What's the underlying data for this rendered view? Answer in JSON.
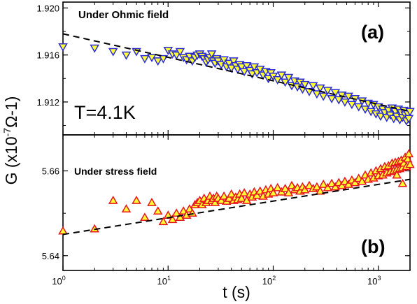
{
  "chart_data": {
    "type": "scatter",
    "x_scale": "log",
    "xlim": [
      1,
      2000
    ],
    "xlabel": "t (s)",
    "ylabel": "G (x10-7Ω-1)",
    "x_ticks": [
      {
        "value": 1,
        "base": "10",
        "exp": "0"
      },
      {
        "value": 10,
        "base": "10",
        "exp": "1"
      },
      {
        "value": 100,
        "base": "10",
        "exp": "2"
      },
      {
        "value": 1000,
        "base": "10",
        "exp": "3"
      }
    ],
    "shared_annotation": "T=4.1K",
    "panels": [
      {
        "label": "(a)",
        "title": "Under Ohmic field",
        "ylim": [
          1.9092,
          1.9205
        ],
        "y_ticks": [
          "1.920",
          "1.916",
          "1.912"
        ],
        "y_tick_values": [
          1.92,
          1.916,
          1.912
        ],
        "marker": "triangle-down",
        "marker_fill": "#ffff33",
        "marker_stroke": "#2b2bd6",
        "fit_line": [
          [
            1,
            1.9178
          ],
          [
            2000,
            1.9112
          ]
        ],
        "points": [
          [
            1,
            1.9167
          ],
          [
            2,
            1.9166
          ],
          [
            3,
            1.9163
          ],
          [
            4,
            1.916
          ],
          [
            5,
            1.9163
          ],
          [
            6,
            1.9157
          ],
          [
            7,
            1.9158
          ],
          [
            8,
            1.9155
          ],
          [
            9,
            1.9157
          ],
          [
            10,
            1.9164
          ],
          [
            11,
            1.9161
          ],
          [
            12,
            1.916
          ],
          [
            13,
            1.9163
          ],
          [
            14,
            1.9158
          ],
          [
            15,
            1.9156
          ],
          [
            16,
            1.9159
          ],
          [
            17,
            1.9155
          ],
          [
            18,
            1.9158
          ],
          [
            19,
            1.916
          ],
          [
            20,
            1.9161
          ],
          [
            21,
            1.9159
          ],
          [
            22,
            1.9157
          ],
          [
            23,
            1.9154
          ],
          [
            24,
            1.9156
          ],
          [
            25,
            1.9158
          ],
          [
            26,
            1.9161
          ],
          [
            27,
            1.9155
          ],
          [
            28,
            1.9153
          ],
          [
            29,
            1.9157
          ],
          [
            30,
            1.9155
          ],
          [
            32,
            1.9152
          ],
          [
            34,
            1.9156
          ],
          [
            36,
            1.915
          ],
          [
            38,
            1.9153
          ],
          [
            40,
            1.9149
          ],
          [
            42,
            1.9155
          ],
          [
            44,
            1.9151
          ],
          [
            46,
            1.9148
          ],
          [
            48,
            1.9152
          ],
          [
            50,
            1.915
          ],
          [
            53,
            1.9146
          ],
          [
            56,
            1.9151
          ],
          [
            60,
            1.9147
          ],
          [
            63,
            1.9144
          ],
          [
            66,
            1.915
          ],
          [
            70,
            1.9145
          ],
          [
            75,
            1.9148
          ],
          [
            80,
            1.9143
          ],
          [
            85,
            1.9146
          ],
          [
            90,
            1.914
          ],
          [
            95,
            1.9145
          ],
          [
            100,
            1.9142
          ],
          [
            110,
            1.9139
          ],
          [
            120,
            1.9143
          ],
          [
            130,
            1.9137
          ],
          [
            140,
            1.9141
          ],
          [
            150,
            1.9134
          ],
          [
            160,
            1.9138
          ],
          [
            170,
            1.9133
          ],
          [
            180,
            1.9137
          ],
          [
            190,
            1.9131
          ],
          [
            200,
            1.9135
          ],
          [
            220,
            1.9129
          ],
          [
            240,
            1.9134
          ],
          [
            260,
            1.9127
          ],
          [
            280,
            1.9132
          ],
          [
            300,
            1.9125
          ],
          [
            330,
            1.913
          ],
          [
            360,
            1.9123
          ],
          [
            390,
            1.9128
          ],
          [
            420,
            1.9122
          ],
          [
            450,
            1.9126
          ],
          [
            480,
            1.912
          ],
          [
            520,
            1.9125
          ],
          [
            560,
            1.9118
          ],
          [
            600,
            1.9123
          ],
          [
            650,
            1.9116
          ],
          [
            700,
            1.9121
          ],
          [
            750,
            1.9114
          ],
          [
            800,
            1.9119
          ],
          [
            850,
            1.9112
          ],
          [
            900,
            1.9118
          ],
          [
            950,
            1.911
          ],
          [
            1000,
            1.9116
          ],
          [
            1050,
            1.9108
          ],
          [
            1100,
            1.9114
          ],
          [
            1150,
            1.9111
          ],
          [
            1200,
            1.9107
          ],
          [
            1250,
            1.9113
          ],
          [
            1300,
            1.9109
          ],
          [
            1350,
            1.9115
          ],
          [
            1400,
            1.9106
          ],
          [
            1450,
            1.9112
          ],
          [
            1500,
            1.9108
          ],
          [
            1550,
            1.9114
          ],
          [
            1600,
            1.9105
          ],
          [
            1650,
            1.9111
          ],
          [
            1700,
            1.9107
          ],
          [
            1750,
            1.9113
          ],
          [
            1800,
            1.9109
          ],
          [
            1850,
            1.9104
          ],
          [
            1900,
            1.911
          ],
          [
            1950,
            1.9106
          ],
          [
            2000,
            1.9112
          ]
        ]
      },
      {
        "label": "(b)",
        "title": "Under stress field",
        "ylim": [
          5.6365,
          5.6685
        ],
        "y_ticks": [
          "5.66",
          "5.64"
        ],
        "y_tick_values": [
          5.66,
          5.64
        ],
        "marker": "triangle-up",
        "marker_fill": "#ffff33",
        "marker_stroke": "#e8141c",
        "fit_line": [
          [
            1,
            5.645
          ],
          [
            2000,
            5.658
          ]
        ],
        "points": [
          [
            1,
            5.6458
          ],
          [
            2,
            5.6463
          ],
          [
            3,
            5.653
          ],
          [
            4,
            5.651
          ],
          [
            5,
            5.653
          ],
          [
            6,
            5.649
          ],
          [
            7,
            5.6525
          ],
          [
            8,
            5.6505
          ],
          [
            9,
            5.648
          ],
          [
            10,
            5.6495
          ],
          [
            11,
            5.6485
          ],
          [
            12,
            5.65
          ],
          [
            13,
            5.649
          ],
          [
            14,
            5.6505
          ],
          [
            15,
            5.6495
          ],
          [
            16,
            5.651
          ],
          [
            17,
            5.65
          ],
          [
            18,
            5.652
          ],
          [
            19,
            5.6525
          ],
          [
            20,
            5.653
          ],
          [
            21,
            5.652
          ],
          [
            22,
            5.6535
          ],
          [
            23,
            5.6525
          ],
          [
            24,
            5.653
          ],
          [
            25,
            5.654
          ],
          [
            26,
            5.653
          ],
          [
            27,
            5.6535
          ],
          [
            28,
            5.6525
          ],
          [
            29,
            5.654
          ],
          [
            30,
            5.6535
          ],
          [
            32,
            5.653
          ],
          [
            34,
            5.654
          ],
          [
            36,
            5.6528
          ],
          [
            38,
            5.6535
          ],
          [
            40,
            5.6545
          ],
          [
            42,
            5.653
          ],
          [
            44,
            5.6538
          ],
          [
            46,
            5.6532
          ],
          [
            48,
            5.6545
          ],
          [
            50,
            5.6535
          ],
          [
            53,
            5.6548
          ],
          [
            56,
            5.653
          ],
          [
            60,
            5.6545
          ],
          [
            63,
            5.6538
          ],
          [
            66,
            5.655
          ],
          [
            70,
            5.6542
          ],
          [
            75,
            5.6552
          ],
          [
            80,
            5.654
          ],
          [
            85,
            5.6555
          ],
          [
            90,
            5.6545
          ],
          [
            95,
            5.6558
          ],
          [
            100,
            5.6548
          ],
          [
            110,
            5.656
          ],
          [
            120,
            5.655
          ],
          [
            130,
            5.6558
          ],
          [
            140,
            5.6548
          ],
          [
            150,
            5.6565
          ],
          [
            160,
            5.6555
          ],
          [
            170,
            5.656
          ],
          [
            180,
            5.6552
          ],
          [
            190,
            5.6562
          ],
          [
            200,
            5.6555
          ],
          [
            220,
            5.6565
          ],
          [
            240,
            5.6558
          ],
          [
            260,
            5.6562
          ],
          [
            280,
            5.6552
          ],
          [
            300,
            5.6568
          ],
          [
            330,
            5.656
          ],
          [
            360,
            5.657
          ],
          [
            390,
            5.6562
          ],
          [
            420,
            5.6572
          ],
          [
            450,
            5.6565
          ],
          [
            480,
            5.6575
          ],
          [
            520,
            5.6568
          ],
          [
            560,
            5.6578
          ],
          [
            600,
            5.6572
          ],
          [
            650,
            5.6582
          ],
          [
            700,
            5.6575
          ],
          [
            750,
            5.659
          ],
          [
            800,
            5.658
          ],
          [
            850,
            5.6595
          ],
          [
            900,
            5.6583
          ],
          [
            950,
            5.66
          ],
          [
            1000,
            5.6588
          ],
          [
            1050,
            5.6605
          ],
          [
            1100,
            5.659
          ],
          [
            1150,
            5.661
          ],
          [
            1200,
            5.6595
          ],
          [
            1250,
            5.6612
          ],
          [
            1300,
            5.6598
          ],
          [
            1350,
            5.6618
          ],
          [
            1400,
            5.66
          ],
          [
            1450,
            5.662
          ],
          [
            1500,
            5.6603
          ],
          [
            1550,
            5.6622
          ],
          [
            1600,
            5.6605
          ],
          [
            1650,
            5.6625
          ],
          [
            1700,
            5.6608
          ],
          [
            1750,
            5.6618
          ],
          [
            1800,
            5.6632
          ],
          [
            1850,
            5.661
          ],
          [
            1900,
            5.6628
          ],
          [
            1950,
            5.664
          ],
          [
            2000,
            5.6615
          ],
          [
            1500,
            5.659
          ],
          [
            1700,
            5.657
          ]
        ]
      }
    ]
  }
}
